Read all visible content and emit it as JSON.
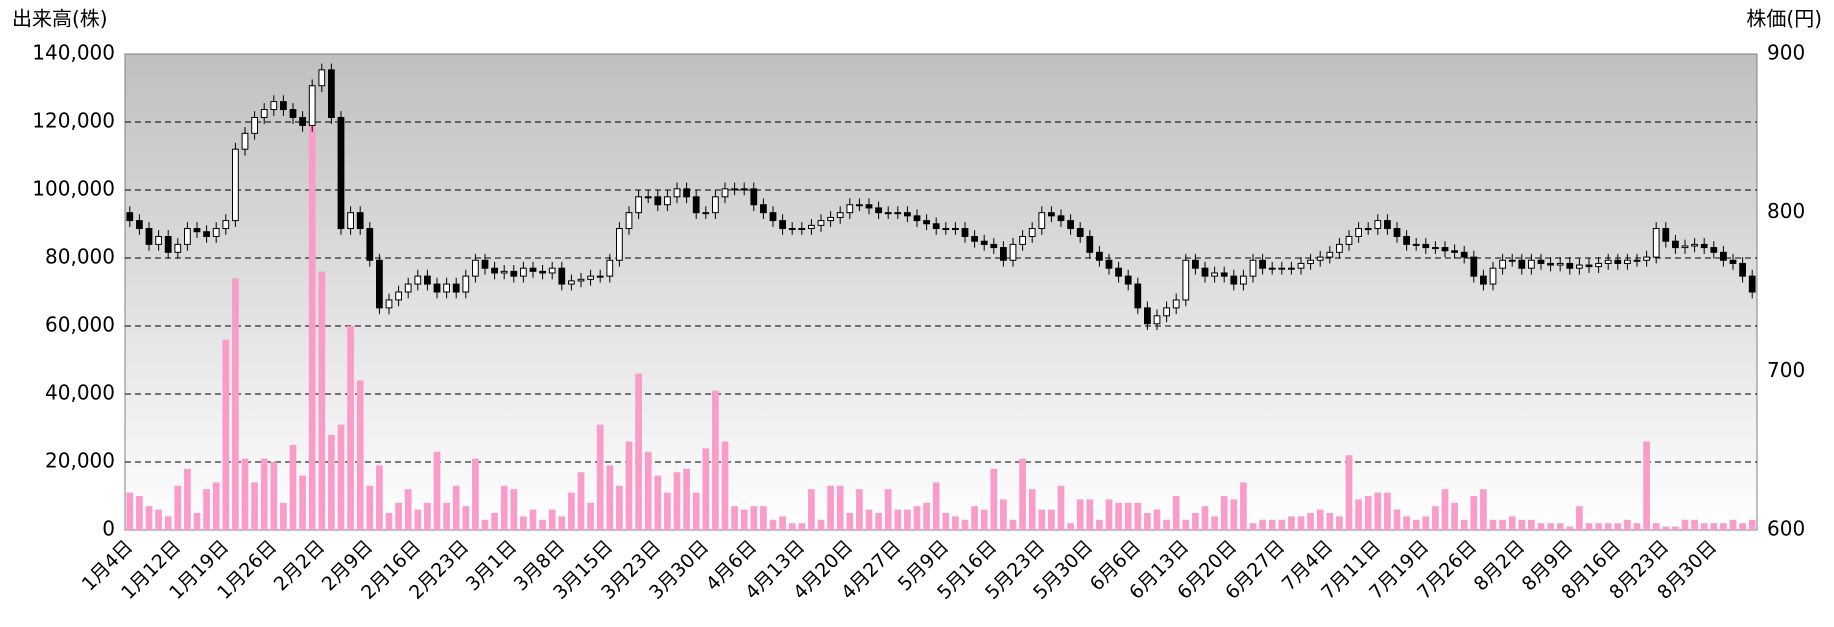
{
  "chart_data": {
    "type": "combo",
    "ylabel": "出来高(株)",
    "y2label": "株価(円)",
    "ylim": [
      0,
      140000
    ],
    "yticks": [
      0,
      {
        "value": 20000,
        "label": "20,000"
      },
      {
        "value": 40000,
        "label": "40,000"
      },
      {
        "value": 60000,
        "label": "60,000"
      },
      {
        "value": 80000,
        "label": "80,000"
      },
      {
        "value": 100000,
        "label": "100,000"
      },
      {
        "value": 120000,
        "label": "120,000"
      },
      {
        "value": 140000,
        "label": "140,000"
      }
    ],
    "y2lim": [
      600,
      900
    ],
    "y2ticks": [
      600,
      700,
      800,
      900
    ],
    "grid": true,
    "categories": [
      "1月4日",
      null,
      null,
      null,
      null,
      "1月12日",
      null,
      null,
      null,
      null,
      "1月19日",
      null,
      null,
      null,
      null,
      "1月26日",
      null,
      null,
      null,
      null,
      "2月2日",
      null,
      null,
      null,
      null,
      "2月9日",
      null,
      null,
      null,
      null,
      "2月16日",
      null,
      null,
      null,
      null,
      "2月23日",
      null,
      null,
      null,
      null,
      "3月1日",
      null,
      null,
      null,
      null,
      "3月8日",
      null,
      null,
      null,
      null,
      "3月15日",
      null,
      null,
      null,
      null,
      "3月23日",
      null,
      null,
      null,
      null,
      "3月30日",
      null,
      null,
      null,
      null,
      "4月6日",
      null,
      null,
      null,
      null,
      "4月13日",
      null,
      null,
      null,
      null,
      "4月20日",
      null,
      null,
      null,
      null,
      "4月27日",
      null,
      null,
      null,
      null,
      "5月9日",
      null,
      null,
      null,
      null,
      "5月16日",
      null,
      null,
      null,
      null,
      "5月23日",
      null,
      null,
      null,
      null,
      "5月30日",
      null,
      null,
      null,
      null,
      "6月6日",
      null,
      null,
      null,
      null,
      "6月13日",
      null,
      null,
      null,
      null,
      "6月20日",
      null,
      null,
      null,
      null,
      "6月27日",
      null,
      null,
      null,
      null,
      "7月4日",
      null,
      null,
      null,
      null,
      "7月11日",
      null,
      null,
      null,
      null,
      "7月19日",
      null,
      null,
      null,
      null,
      "7月26日",
      null,
      null,
      null,
      null,
      "8月2日",
      null,
      null,
      null,
      null,
      "8月9日",
      null,
      null,
      null,
      null,
      "8月16日",
      null,
      null,
      null,
      null,
      "8月23日",
      null,
      null,
      null,
      null,
      "8月30日",
      null,
      null,
      null,
      null
    ],
    "series": [
      {
        "type": "bar",
        "color": "#f99cc9",
        "values": [
          11000,
          10000,
          7000,
          6000,
          4000,
          13000,
          18000,
          5000,
          12000,
          14000,
          56000,
          74000,
          21000,
          14000,
          21000,
          20000,
          8000,
          25000,
          16000,
          120000,
          76000,
          28000,
          31000,
          60000,
          44000,
          13000,
          19000,
          5000,
          8000,
          12000,
          6000,
          8000,
          23000,
          8000,
          13000,
          7000,
          21000,
          3000,
          5000,
          13000,
          12000,
          4000,
          6000,
          3000,
          6000,
          4000,
          11000,
          17000,
          8000,
          31000,
          19000,
          13000,
          26000,
          46000,
          23000,
          16000,
          11000,
          17000,
          18000,
          11000,
          24000,
          41000,
          26000,
          7000,
          6000,
          7000,
          7000,
          3000,
          4000,
          2000,
          2000,
          12000,
          3000,
          13000,
          13000,
          5000,
          12000,
          6000,
          5000,
          12000,
          6000,
          6000,
          7000,
          8000,
          14000,
          5000,
          4000,
          3000,
          7000,
          6000,
          18000,
          9000,
          3000,
          21000,
          12000,
          6000,
          6000,
          13000,
          2000,
          9000,
          9000,
          3000,
          9000,
          8000,
          8000,
          8000,
          5000,
          6000,
          3000,
          10000,
          3000,
          5000,
          7000,
          4000,
          10000,
          9000,
          14000,
          2000,
          3000,
          3000,
          3000,
          4000,
          4000,
          5000,
          6000,
          5000,
          4000,
          22000,
          9000,
          10000,
          11000,
          11000,
          6000,
          4000,
          3000,
          4000,
          7000,
          12000,
          8000,
          3000,
          10000,
          12000,
          3000,
          3000,
          4000,
          3000,
          3000,
          2000,
          2000,
          2000,
          1000,
          7000,
          2000,
          2000,
          2000,
          2000,
          3000,
          2000,
          26000,
          2000,
          1000,
          1000,
          3000,
          3000,
          2000,
          2000,
          2000,
          3000,
          2000,
          3000
        ]
      },
      {
        "type": "candlestick",
        "axis": "y2",
        "up_color": "#ffffff",
        "down_color": "#000000",
        "open": [
          800,
          795,
          790,
          780,
          785,
          775,
          780,
          790,
          788,
          785,
          790,
          795,
          840,
          850,
          860,
          865,
          870,
          865,
          860,
          855,
          880,
          890,
          860,
          790,
          800,
          790,
          770,
          740,
          745,
          750,
          755,
          760,
          755,
          750,
          755,
          750,
          760,
          770,
          765,
          762,
          763,
          760,
          765,
          763,
          762,
          765,
          755,
          757,
          758,
          760,
          760,
          770,
          790,
          800,
          810,
          810,
          805,
          810,
          815,
          810,
          800,
          800,
          810,
          815,
          815,
          815,
          805,
          800,
          795,
          790,
          790,
          790,
          792,
          795,
          797,
          800,
          805,
          805,
          803,
          800,
          800,
          800,
          798,
          795,
          793,
          790,
          790,
          790,
          785,
          782,
          780,
          778,
          770,
          780,
          785,
          790,
          800,
          798,
          795,
          790,
          785,
          775,
          770,
          765,
          760,
          755,
          740,
          730,
          735,
          740,
          745,
          770,
          765,
          760,
          762,
          760,
          755,
          760,
          770,
          765,
          765,
          765,
          765,
          768,
          770,
          772,
          775,
          780,
          785,
          790,
          790,
          795,
          790,
          785,
          780,
          780,
          778,
          778,
          776,
          775,
          772,
          760,
          755,
          765,
          770,
          770,
          765,
          770,
          768,
          767,
          768,
          765,
          767,
          766,
          768,
          770,
          768,
          770,
          770,
          772,
          790,
          782,
          778,
          779,
          780,
          778,
          775,
          770,
          768,
          760
        ],
        "high": [
          804,
          799,
          794,
          789,
          789,
          784,
          794,
          794,
          792,
          794,
          799,
          844,
          854,
          864,
          869,
          874,
          874,
          869,
          864,
          884,
          894,
          894,
          864,
          804,
          804,
          794,
          774,
          749,
          754,
          759,
          764,
          764,
          759,
          759,
          759,
          764,
          774,
          774,
          769,
          767,
          767,
          769,
          769,
          767,
          769,
          769,
          761,
          762,
          764,
          764,
          774,
          794,
          804,
          814,
          814,
          814,
          814,
          819,
          819,
          814,
          804,
          814,
          819,
          819,
          819,
          819,
          809,
          804,
          799,
          794,
          794,
          796,
          799,
          801,
          804,
          809,
          809,
          809,
          807,
          804,
          804,
          804,
          802,
          799,
          797,
          794,
          794,
          794,
          789,
          786,
          784,
          782,
          784,
          789,
          794,
          804,
          804,
          802,
          799,
          794,
          789,
          779,
          774,
          769,
          764,
          759,
          744,
          739,
          744,
          749,
          774,
          774,
          769,
          766,
          766,
          764,
          764,
          774,
          774,
          769,
          769,
          769,
          772,
          774,
          776,
          779,
          784,
          789,
          794,
          794,
          799,
          799,
          794,
          789,
          784,
          784,
          782,
          782,
          780,
          779,
          776,
          764,
          769,
          774,
          774,
          774,
          774,
          774,
          772,
          772,
          772,
          771,
          771,
          772,
          774,
          774,
          774,
          774,
          776,
          794,
          794,
          786,
          783,
          784,
          784,
          782,
          779,
          774,
          772,
          764
        ],
        "low": [
          791,
          786,
          776,
          776,
          771,
          771,
          776,
          784,
          781,
          781,
          786,
          791,
          836,
          846,
          856,
          861,
          861,
          856,
          851,
          851,
          876,
          856,
          786,
          786,
          786,
          766,
          736,
          736,
          741,
          746,
          751,
          751,
          746,
          746,
          746,
          746,
          756,
          761,
          758,
          758,
          756,
          756,
          759,
          758,
          758,
          751,
          751,
          753,
          754,
          756,
          756,
          766,
          786,
          796,
          806,
          801,
          801,
          806,
          806,
          796,
          796,
          796,
          806,
          811,
          811,
          801,
          796,
          791,
          786,
          786,
          786,
          786,
          788,
          791,
          793,
          796,
          801,
          799,
          796,
          796,
          796,
          794,
          791,
          789,
          786,
          786,
          786,
          781,
          778,
          776,
          774,
          766,
          766,
          776,
          781,
          786,
          794,
          791,
          786,
          781,
          771,
          766,
          761,
          756,
          751,
          736,
          726,
          726,
          731,
          736,
          741,
          761,
          756,
          756,
          756,
          751,
          751,
          756,
          761,
          761,
          761,
          761,
          761,
          764,
          766,
          768,
          771,
          776,
          781,
          786,
          786,
          786,
          781,
          776,
          776,
          774,
          774,
          772,
          771,
          768,
          756,
          751,
          751,
          761,
          766,
          761,
          761,
          764,
          763,
          763,
          761,
          761,
          762,
          762,
          764,
          764,
          764,
          766,
          766,
          768,
          778,
          774,
          774,
          775,
          774,
          771,
          766,
          764,
          756,
          746
        ],
        "close": [
          795,
          790,
          780,
          785,
          775,
          780,
          790,
          788,
          785,
          790,
          795,
          840,
          850,
          860,
          865,
          870,
          865,
          860,
          855,
          880,
          890,
          860,
          790,
          800,
          790,
          770,
          740,
          745,
          750,
          755,
          760,
          755,
          750,
          755,
          750,
          760,
          770,
          765,
          762,
          763,
          760,
          765,
          763,
          762,
          765,
          755,
          757,
          758,
          760,
          760,
          770,
          790,
          800,
          810,
          810,
          805,
          810,
          815,
          810,
          800,
          800,
          810,
          815,
          815,
          815,
          805,
          800,
          795,
          790,
          790,
          790,
          792,
          795,
          797,
          800,
          805,
          805,
          803,
          800,
          800,
          800,
          798,
          795,
          793,
          790,
          790,
          790,
          785,
          782,
          780,
          778,
          770,
          780,
          785,
          790,
          800,
          798,
          795,
          790,
          785,
          775,
          770,
          765,
          760,
          755,
          740,
          730,
          735,
          740,
          745,
          770,
          765,
          760,
          762,
          760,
          755,
          760,
          770,
          765,
          765,
          765,
          765,
          768,
          770,
          772,
          775,
          780,
          785,
          790,
          790,
          795,
          790,
          785,
          780,
          780,
          778,
          778,
          776,
          775,
          772,
          760,
          755,
          765,
          770,
          770,
          765,
          770,
          768,
          767,
          768,
          765,
          767,
          766,
          768,
          770,
          768,
          770,
          770,
          772,
          790,
          782,
          778,
          779,
          780,
          778,
          775,
          770,
          768,
          760,
          750
        ]
      }
    ]
  }
}
